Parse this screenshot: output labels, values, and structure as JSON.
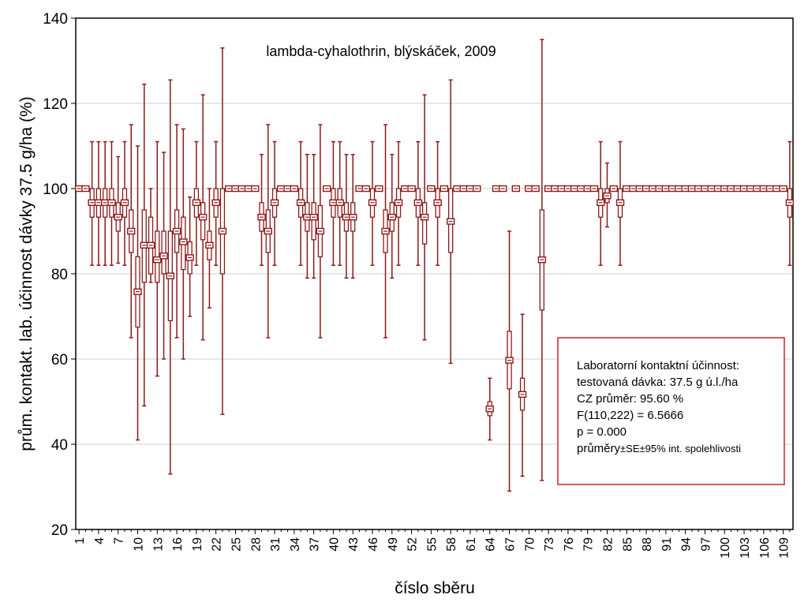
{
  "chart_data": {
    "type": "scatter",
    "title": "lambda-cyhalothrin, blýskáček, 2009",
    "xlabel": "číslo sběru",
    "ylabel": "prům. kontakt. lab. účinnost dávky 37.5 g/ha (%)",
    "ylim": [
      20,
      140
    ],
    "yticks": [
      20,
      40,
      60,
      80,
      100,
      120,
      140
    ],
    "xlim": [
      0.5,
      110.5
    ],
    "xtick_labels": [
      "1",
      "4",
      "7",
      "10",
      "13",
      "16",
      "19",
      "22",
      "25",
      "28",
      "31",
      "34",
      "37",
      "40",
      "43",
      "46",
      "49",
      "52",
      "55",
      "58",
      "61",
      "64",
      "67",
      "70",
      "73",
      "76",
      "79",
      "82",
      "85",
      "88",
      "91",
      "94",
      "97",
      "100",
      "103",
      "106",
      "109"
    ],
    "grid": true,
    "colors": {
      "series": "#8b1a1a",
      "annotation_border": "#cc2222",
      "grid": "#cfcfcf"
    },
    "annotation": {
      "lines": [
        "Laboratorní kontaktní účinnost:",
        "testovaná dávka: 37.5 g ú.l./ha",
        "CZ průměr: 95.60 %",
        "F(110,222) = 6.5666",
        "p = 0.000"
      ],
      "last_line_main": "průměry",
      "last_line_small": "±SE±95% int. spolehlivosti"
    },
    "series": [
      {
        "x": [
          1,
          2,
          3,
          4,
          5,
          6,
          7,
          8,
          9,
          10,
          11,
          12,
          13,
          14,
          15,
          16,
          17,
          18,
          19,
          20,
          21,
          22,
          23,
          24,
          25,
          26,
          27,
          28,
          29,
          30,
          31,
          32,
          33,
          34,
          35,
          36,
          37,
          38,
          39,
          40,
          41,
          42,
          43,
          44,
          45,
          46,
          47,
          48,
          49,
          50,
          51,
          52,
          53,
          54,
          55,
          56,
          57,
          58,
          59,
          60,
          61,
          62,
          63,
          64,
          65,
          66,
          67,
          68,
          69,
          70,
          71,
          72,
          73,
          74,
          75,
          76,
          77,
          78,
          79,
          80,
          81,
          82,
          83,
          84,
          85,
          86,
          87,
          88,
          89,
          90,
          91,
          92,
          93,
          94,
          95,
          96,
          97,
          98,
          99,
          100,
          101,
          102,
          103,
          104,
          105,
          106,
          107,
          108,
          109,
          110
        ],
        "mean": [
          100,
          100,
          96.7,
          96.7,
          96.7,
          96.7,
          93.3,
          96.7,
          90,
          75.8,
          86.7,
          86.7,
          83.3,
          84.2,
          79.5,
          90,
          87.5,
          83.8,
          96.7,
          93.3,
          86.7,
          96.7,
          90,
          100,
          100,
          100,
          100,
          100,
          93.3,
          90,
          96.7,
          100,
          100,
          100,
          96.7,
          93.3,
          93.3,
          90,
          100,
          96.7,
          96.7,
          93.3,
          93.3,
          100,
          100,
          96.7,
          100,
          90,
          93.3,
          96.7,
          100,
          100,
          96.7,
          93.3,
          100,
          96.7,
          100,
          92.3,
          100,
          100,
          100,
          100,
          null,
          48.3,
          100,
          100,
          59.7,
          100,
          51.7,
          100,
          100,
          83.3,
          100,
          100,
          100,
          100,
          100,
          100,
          100,
          100,
          96.7,
          98.3,
          100,
          96.7,
          100,
          100,
          100,
          100,
          100,
          100,
          100,
          100,
          100,
          100,
          100,
          100,
          100,
          100,
          100,
          100,
          100,
          100,
          100,
          100,
          100,
          100,
          100,
          100,
          100,
          96.7
        ],
        "se_low": [
          100,
          100,
          93.3,
          93.3,
          93.3,
          93.3,
          90,
          93.3,
          85,
          67.5,
          78,
          80,
          78,
          80,
          69,
          85,
          81,
          80,
          93.3,
          88,
          83.3,
          93.3,
          80,
          100,
          100,
          100,
          100,
          100,
          90,
          85,
          93.3,
          100,
          100,
          100,
          93.3,
          90,
          88,
          84,
          100,
          93.3,
          93.3,
          90,
          90,
          100,
          100,
          93.3,
          100,
          85,
          90,
          93.3,
          100,
          100,
          93.3,
          87,
          100,
          93.3,
          100,
          85,
          100,
          100,
          100,
          100,
          null,
          46.7,
          100,
          100,
          53,
          100,
          48,
          100,
          100,
          71.5,
          100,
          100,
          100,
          100,
          100,
          100,
          100,
          100,
          93.3,
          96.7,
          100,
          93.3,
          100,
          100,
          100,
          100,
          100,
          100,
          100,
          100,
          100,
          100,
          100,
          100,
          100,
          100,
          100,
          100,
          100,
          100,
          100,
          100,
          100,
          100,
          100,
          100,
          100,
          93.3
        ],
        "se_high": [
          100,
          100,
          100,
          100,
          100,
          100,
          96.7,
          100,
          95,
          84,
          95,
          93.3,
          90,
          90,
          90,
          95,
          93.3,
          87.5,
          100,
          96.7,
          90,
          100,
          100,
          100,
          100,
          100,
          100,
          100,
          96.7,
          95,
          100,
          100,
          100,
          100,
          100,
          96.7,
          96.7,
          96,
          100,
          100,
          100,
          96.7,
          96.7,
          100,
          100,
          100,
          100,
          95,
          96.7,
          100,
          100,
          100,
          100,
          96.7,
          100,
          100,
          100,
          100,
          100,
          100,
          100,
          100,
          null,
          50,
          100,
          100,
          66.5,
          100,
          55.5,
          100,
          100,
          95,
          100,
          100,
          100,
          100,
          100,
          100,
          100,
          100,
          100,
          100,
          100,
          100,
          100,
          100,
          100,
          100,
          100,
          100,
          100,
          100,
          100,
          100,
          100,
          100,
          100,
          100,
          100,
          100,
          100,
          100,
          100,
          100,
          100,
          100,
          100,
          100,
          100,
          100
        ],
        "ci_low": [
          100,
          100,
          82,
          82,
          82,
          82,
          82.5,
          82,
          65,
          41,
          49,
          78,
          56,
          60,
          33,
          65,
          60,
          70,
          82,
          64.5,
          72,
          82,
          47,
          100,
          100,
          100,
          100,
          100,
          82,
          65,
          82,
          100,
          100,
          100,
          82,
          79,
          79,
          65,
          100,
          82,
          82,
          79,
          79,
          100,
          100,
          82,
          100,
          65,
          79,
          82,
          100,
          100,
          82,
          64.5,
          100,
          82,
          100,
          59,
          100,
          100,
          100,
          100,
          null,
          41,
          100,
          100,
          29,
          100,
          32.5,
          100,
          100,
          31.5,
          100,
          100,
          100,
          100,
          100,
          100,
          100,
          100,
          82,
          91,
          100,
          82,
          100,
          100,
          100,
          100,
          100,
          100,
          100,
          100,
          100,
          100,
          100,
          100,
          100,
          100,
          100,
          100,
          100,
          100,
          100,
          100,
          100,
          100,
          100,
          100,
          100,
          82
        ],
        "ci_high": [
          100,
          100,
          111,
          111,
          111,
          111,
          107.5,
          111,
          115,
          110,
          124.5,
          100,
          111,
          108.5,
          125.5,
          115,
          114,
          98,
          111,
          122,
          100,
          111,
          133,
          100,
          100,
          100,
          100,
          100,
          108,
          115,
          111,
          100,
          100,
          100,
          111,
          108,
          108,
          115,
          100,
          111,
          111,
          108,
          108,
          100,
          100,
          111,
          100,
          115,
          108,
          111,
          100,
          100,
          111,
          122,
          100,
          111,
          100,
          125.5,
          100,
          100,
          100,
          100,
          null,
          55.5,
          100,
          100,
          90,
          100,
          70.5,
          100,
          100,
          135,
          100,
          100,
          100,
          100,
          100,
          100,
          100,
          100,
          111,
          106,
          100,
          111,
          100,
          100,
          100,
          100,
          100,
          100,
          100,
          100,
          100,
          100,
          100,
          100,
          100,
          100,
          100,
          100,
          100,
          100,
          100,
          100,
          100,
          100,
          100,
          100,
          100,
          111
        ]
      }
    ]
  }
}
